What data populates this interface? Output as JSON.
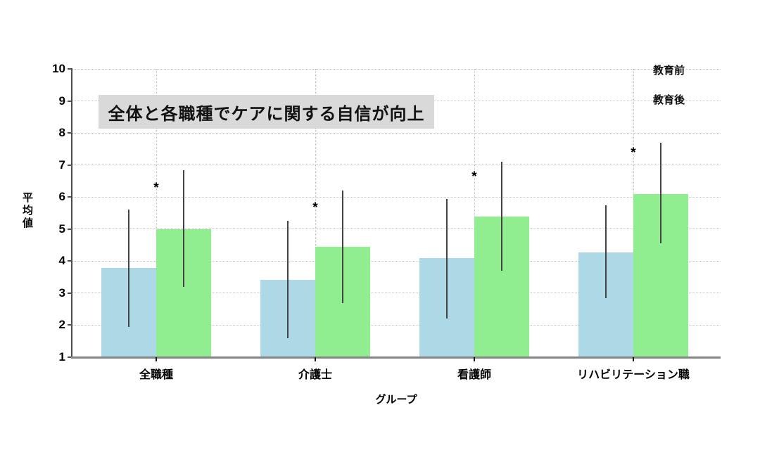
{
  "chart_data": {
    "type": "bar",
    "title": "全体と各職種でケアに関する自信が向上",
    "xlabel": "グループ",
    "ylabel": "平均値",
    "ylim": [
      1,
      10
    ],
    "yticks": [
      1,
      2,
      3,
      4,
      5,
      6,
      7,
      8,
      9,
      10
    ],
    "grid": "dotted horizontal lines at each y tick and dotted vertical lines at each category center",
    "legend_position": "top-right",
    "categories": [
      "全職種",
      "介護士",
      "看護師",
      "リハビリテーション職"
    ],
    "series": [
      {
        "name": "教育前",
        "color": "#ADD8E6",
        "values": [
          3.78,
          3.42,
          4.1,
          4.28
        ],
        "error_low": [
          1.95,
          1.6,
          2.2,
          2.85
        ],
        "error_high": [
          5.6,
          5.25,
          5.95,
          5.75
        ]
      },
      {
        "name": "教育後",
        "color": "#90EE90",
        "values": [
          5.0,
          4.45,
          5.4,
          6.1
        ],
        "error_low": [
          3.2,
          2.7,
          3.7,
          4.55
        ],
        "error_high": [
          6.85,
          6.2,
          7.1,
          7.7
        ]
      }
    ],
    "significance_markers": [
      {
        "category": "全職種",
        "symbol": "*",
        "y": 6.35
      },
      {
        "category": "介護士",
        "symbol": "*",
        "y": 5.75
      },
      {
        "category": "看護師",
        "symbol": "*",
        "y": 6.7
      },
      {
        "category": "リハビリテーション職",
        "symbol": "*",
        "y": 7.45
      }
    ]
  },
  "colors": {
    "background": "#ffffff",
    "title_background": "#d9d9d9",
    "error_bar": "#434343",
    "y_spine": "#4d4d4d",
    "x_baseline": "#858585",
    "gridline": "#c3c3c3",
    "text": "#000000"
  }
}
